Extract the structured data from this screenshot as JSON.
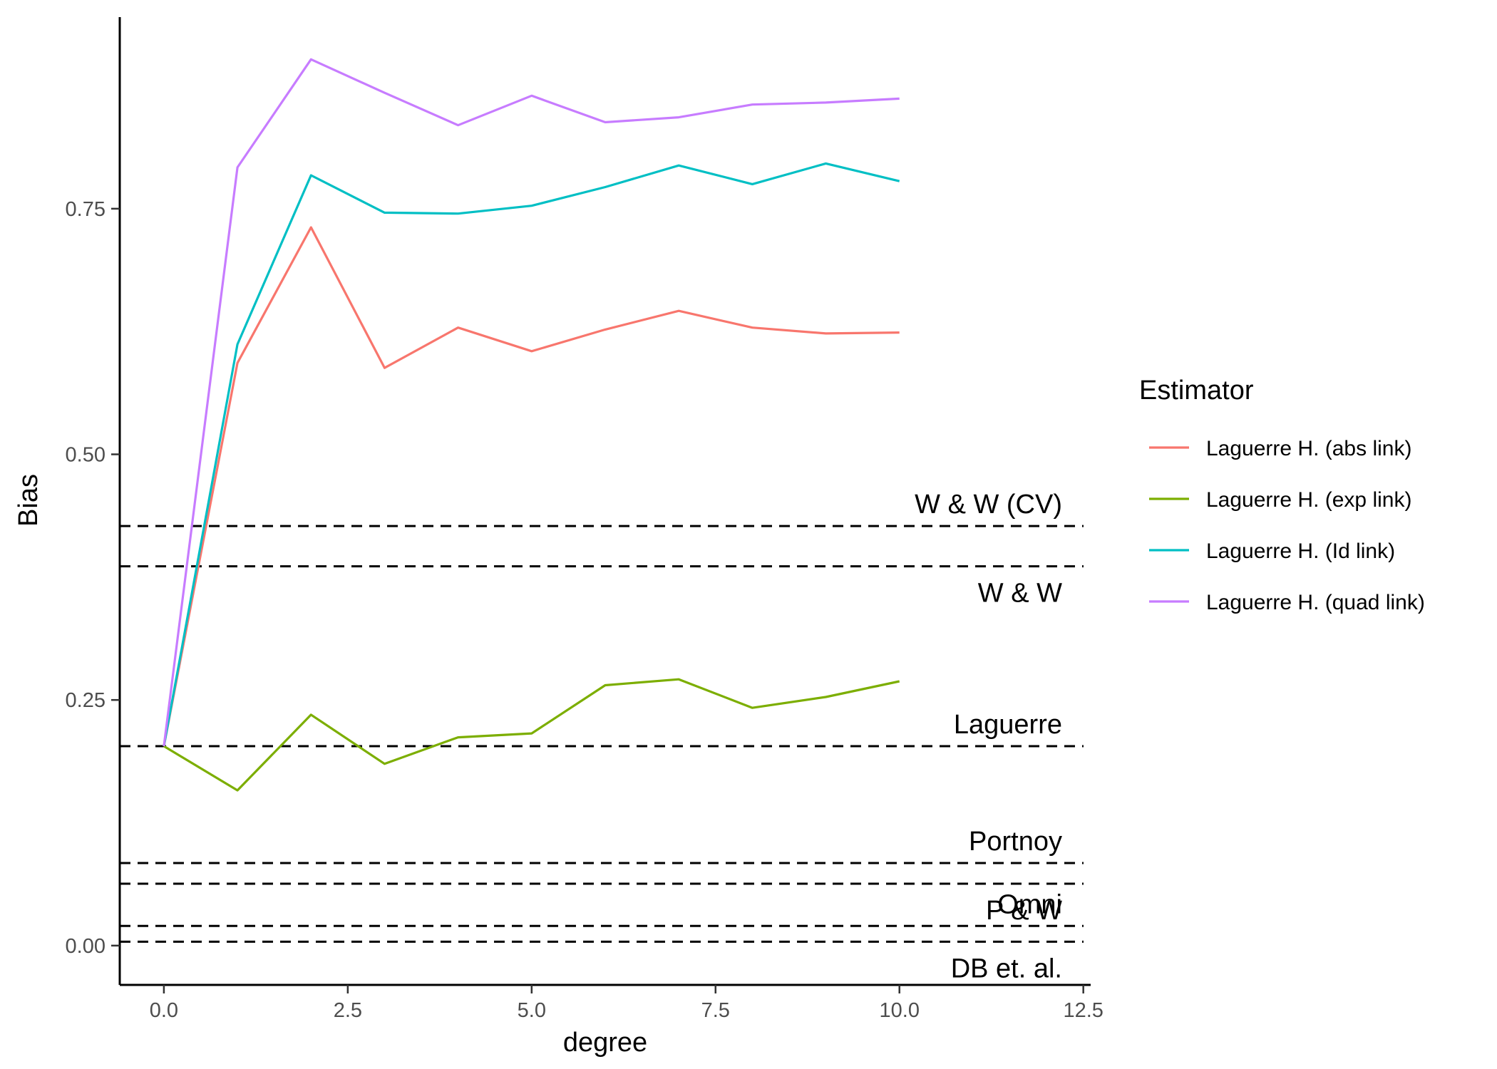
{
  "chart_data": {
    "type": "line",
    "xlabel": "degree",
    "ylabel": "Bias",
    "xlim": [
      -0.6,
      12.6
    ],
    "ylim": [
      -0.04,
      0.945
    ],
    "x_ticks": [
      0.0,
      2.5,
      5.0,
      7.5,
      10.0,
      12.5
    ],
    "x_tick_labels": [
      "0.0",
      "2.5",
      "5.0",
      "7.5",
      "10.0",
      "12.5"
    ],
    "y_ticks": [
      0.0,
      0.25,
      0.5,
      0.75
    ],
    "y_tick_labels": [
      "0.00",
      "0.25",
      "0.50",
      "0.75"
    ],
    "grid": false,
    "legend": {
      "title": "Estimator",
      "position": "right"
    },
    "x": [
      0,
      1,
      2,
      3,
      4,
      5,
      6,
      7,
      8,
      9,
      10
    ],
    "series": [
      {
        "name": "Laguerre H. (abs link)",
        "color": "#F8766D",
        "values": [
          0.203,
          0.593,
          0.731,
          0.588,
          0.629,
          0.605,
          0.627,
          0.646,
          0.629,
          0.623,
          0.624
        ]
      },
      {
        "name": "Laguerre H. (exp link)",
        "color": "#7CAE00",
        "values": [
          0.203,
          0.158,
          0.235,
          0.185,
          0.212,
          0.216,
          0.265,
          0.271,
          0.242,
          0.253,
          0.269
        ]
      },
      {
        "name": "Laguerre H. (Id link)",
        "color": "#00BFC4",
        "values": [
          0.203,
          0.612,
          0.784,
          0.746,
          0.745,
          0.753,
          0.772,
          0.794,
          0.775,
          0.796,
          0.778
        ]
      },
      {
        "name": "Laguerre H. (quad link)",
        "color": "#C77CFF",
        "values": [
          0.203,
          0.792,
          0.902,
          0.868,
          0.835,
          0.865,
          0.838,
          0.843,
          0.856,
          0.858,
          0.862
        ]
      }
    ],
    "reference_lines": [
      {
        "label": "W & W (CV)",
        "value": 0.427,
        "label_side": "above"
      },
      {
        "label": "W & W",
        "value": 0.386,
        "label_side": "below"
      },
      {
        "label": "Laguerre",
        "value": 0.203,
        "label_side": "above"
      },
      {
        "label": "Portnoy",
        "value": 0.084,
        "label_side": "above"
      },
      {
        "label": "P & W",
        "value": 0.063,
        "label_side": "below"
      },
      {
        "label": "Omni",
        "value": 0.02,
        "label_side": "above"
      },
      {
        "label": "DB et. al.",
        "value": 0.004,
        "label_side": "below"
      }
    ]
  }
}
